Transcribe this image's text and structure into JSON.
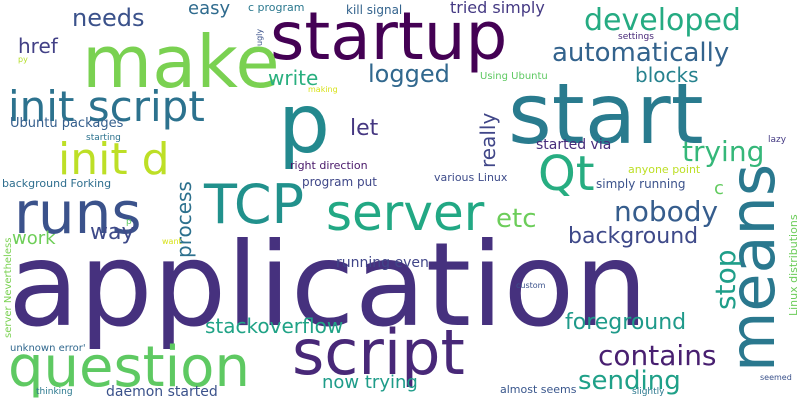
{
  "background": "#ffffff",
  "words": [
    {
      "text": "application",
      "color": "#46317e"
    },
    {
      "text": "p",
      "color": "#23898e"
    },
    {
      "text": "start",
      "color": "#297b8e"
    },
    {
      "text": "startup",
      "color": "#440154"
    },
    {
      "text": "make",
      "color": "#7ad151"
    },
    {
      "text": "script",
      "color": "#482878"
    },
    {
      "text": "question",
      "color": "#5ec962"
    },
    {
      "text": "means",
      "color": "#2a788e"
    },
    {
      "text": "server",
      "color": "#22a884"
    },
    {
      "text": "runs",
      "color": "#3b528b"
    },
    {
      "text": "init script",
      "color": "#2c728e"
    },
    {
      "text": "TCP",
      "color": "#21918c"
    },
    {
      "text": "init d",
      "color": "#bddf26"
    },
    {
      "text": "Qt",
      "color": "#27ad81"
    },
    {
      "text": "developed",
      "color": "#25ab82"
    },
    {
      "text": "automatically",
      "color": "#33638d"
    },
    {
      "text": "trying",
      "color": "#35b779"
    },
    {
      "text": "nobody",
      "color": "#365d8d"
    },
    {
      "text": "background",
      "color": "#3e4989"
    },
    {
      "text": "stop",
      "color": "#1f9e89"
    },
    {
      "text": "contains",
      "color": "#481f70"
    },
    {
      "text": "sending",
      "color": "#1fa088"
    },
    {
      "text": "foreground",
      "color": "#1f9a8a"
    },
    {
      "text": "stackoverflow",
      "color": "#20a386"
    },
    {
      "text": "etc",
      "color": "#6ccd5a"
    },
    {
      "text": "process",
      "color": "#2d718e"
    },
    {
      "text": "logged",
      "color": "#31688e"
    },
    {
      "text": "blocks",
      "color": "#26828e"
    },
    {
      "text": "needs",
      "color": "#3b528b"
    },
    {
      "text": "let",
      "color": "#453781"
    },
    {
      "text": "write",
      "color": "#29af7f"
    },
    {
      "text": "href",
      "color": "#424086"
    },
    {
      "text": "really",
      "color": "#404688"
    },
    {
      "text": "way",
      "color": "#3e4a89"
    },
    {
      "text": "work",
      "color": "#6ece58"
    },
    {
      "text": "now trying",
      "color": "#1e9c89"
    },
    {
      "text": "daemon started",
      "color": "#3b528b"
    },
    {
      "text": "running even",
      "color": "#404588"
    },
    {
      "text": "started via",
      "color": "#472d7b"
    },
    {
      "text": "Ubuntu packages",
      "color": "#355f8d"
    },
    {
      "text": "c",
      "color": "#62cb5f"
    },
    {
      "text": "easy",
      "color": "#2f6b8e"
    },
    {
      "text": "tried simply",
      "color": "#443983"
    },
    {
      "text": "kill signal",
      "color": "#33638d"
    },
    {
      "text": "simply running",
      "color": "#3b528b"
    },
    {
      "text": "program put",
      "color": "#3f4788"
    },
    {
      "text": "anyone point",
      "color": "#bddf26"
    },
    {
      "text": "various Linux",
      "color": "#3e4c8a"
    },
    {
      "text": "right direction",
      "color": "#481769"
    },
    {
      "text": "background Forking",
      "color": "#2e6e8e"
    },
    {
      "text": "almost seems",
      "color": "#39568c"
    },
    {
      "text": "c program",
      "color": "#2a788e"
    },
    {
      "text": "Using Ubuntu",
      "color": "#5ec962"
    },
    {
      "text": "settings",
      "color": "#482878"
    },
    {
      "text": "starting",
      "color": "#2c728e"
    },
    {
      "text": "making",
      "color": "#d8e219"
    },
    {
      "text": "py",
      "color": "#b5de2b"
    },
    {
      "text": "server Nevertheless",
      "color": "#7ad151"
    },
    {
      "text": "Linux distributions",
      "color": "#6ccd5a"
    },
    {
      "text": "unknown error'",
      "color": "#31688e"
    },
    {
      "text": "custom",
      "color": "#3b528b"
    },
    {
      "text": "want",
      "color": "#d8e219"
    },
    {
      "text": "thinking",
      "color": "#2a788e"
    },
    {
      "text": "slightly",
      "color": "#2a788e"
    },
    {
      "text": "seemed",
      "color": "#3b528b"
    },
    {
      "text": "lazy",
      "color": "#443a83"
    },
    {
      "text": "ugly",
      "color": "#3b528b"
    },
    {
      "text": "p",
      "color": "#5ec962"
    }
  ]
}
